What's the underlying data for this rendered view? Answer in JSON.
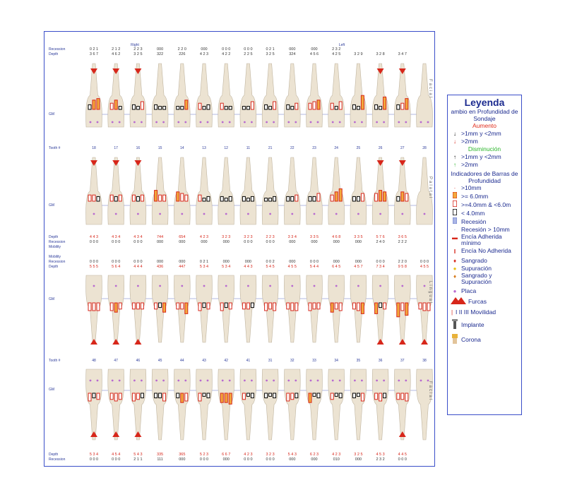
{
  "header": {
    "right_label": "Right",
    "left_label": "Left"
  },
  "upper": {
    "recession_label": "Recession",
    "depth_label": "Depth",
    "recession_values": [
      "0 2 1",
      "2 1 2",
      "2 2 3",
      "000",
      "2 2 0",
      "000",
      "0 0 0",
      "0 0 0",
      "0 2 1",
      "000",
      "000",
      "2 3 2"
    ],
    "depth_values": [
      "3 6 7",
      "4 6 2",
      "3 2 5",
      "322",
      "226",
      "4 2 3",
      "4 2 2",
      "2 2 5",
      "3 2 5",
      "324",
      "4 5 6",
      "4 2 5",
      "3 2 9",
      "3 2 8",
      "3 4 7"
    ],
    "gm_label": "GM",
    "tooth_label": "Tooth #",
    "teeth": [
      "18",
      "17",
      "16",
      "15",
      "14",
      "13",
      "12",
      "11",
      "21",
      "22",
      "23",
      "24",
      "25",
      "26",
      "27",
      "28"
    ]
  },
  "palatal": {
    "gm_label": "GM",
    "depth_label": "Depth",
    "recession_label": "Recession",
    "mobility_label": "Mobility",
    "depth_values": [
      "4 4 3",
      "4 3 4",
      "4 3 4",
      "744",
      "654",
      "4 2 3",
      "3 2 3",
      "3 2 3",
      "2 2 3",
      "3 3 4",
      "3 3 5",
      "4 6 8",
      "3 3 5",
      "5 7 6",
      "3 6 5"
    ],
    "recession_values": [
      "0 0 0",
      "0 0 0",
      "0 0 0",
      "000",
      "000",
      "000",
      "000",
      "0 0 0",
      "0 0 0",
      "000",
      "000",
      "000",
      "000",
      "2 4 0",
      "2 2 2"
    ]
  },
  "lower": {
    "mobility_label": "Mobility",
    "recession_label": "Recession",
    "depth_label": "Depth",
    "recession_values": [
      "0 0 0",
      "0 0 0",
      "0 0 0",
      "000",
      "000",
      "0 2 1",
      "000",
      "000",
      "0 0 2",
      "000",
      "0 0 0",
      "000",
      "000",
      "0 0 0",
      "2 2 0",
      "0 0 0"
    ],
    "depth_values": [
      "5 5 5",
      "5 6 4",
      "4 4 4",
      "436",
      "447",
      "5 3 4",
      "5 3 4",
      "4 4 3",
      "5 4 5",
      "4 5 5",
      "5 4 4",
      "6 4 5",
      "4 5 7",
      "7 3 4",
      "9 5 8",
      "4 5 5"
    ],
    "gm_label": "GM",
    "tooth_label": "Tooth #",
    "teeth": [
      "48",
      "47",
      "46",
      "45",
      "44",
      "43",
      "42",
      "41",
      "31",
      "32",
      "33",
      "34",
      "35",
      "36",
      "37",
      "38"
    ],
    "footer_depth_label": "Depth",
    "footer_recession_label": "Recession",
    "footer_depth": [
      "5 3 4",
      "4 5 4",
      "5 4 3",
      "335",
      "365",
      "5 2 3",
      "6 6 7",
      "4 2 3",
      "3 2 3",
      "5 4 3",
      "6 2 3",
      "4 2 3",
      "3 2 5",
      "4 5 3",
      "4 4 5"
    ],
    "footer_recession": [
      "0 0 0",
      "0 0 0",
      "2 1 1",
      "111",
      "000",
      "0 0 0",
      "000",
      "0 0 0",
      "0 0 0",
      "000",
      "000",
      "010",
      "000",
      "2 3 2",
      "0 0 0"
    ]
  },
  "side_labels": {
    "facial_top": "Facial",
    "palatal": "Palatal",
    "lingual": "Lingual",
    "facial_bottom": "Facial"
  },
  "legend": {
    "title": "Leyenda",
    "change_heading": "ambio en Profundidad de Sondaje",
    "increase": "Aumento",
    "inc1": ">1mm y <2mm",
    "inc2": ">2mm",
    "decrease": "Disminución",
    "dec1": ">1mm y <2mm",
    "dec2": ">2mm",
    "bars_heading": "Indicadores de Barras de Profundidad",
    "b1": ">10mm",
    "b2": ">= 6.0mm",
    "b3": ">=4.0mm & <6.0m",
    "b4": "< 4.0mm",
    "b5": "Recesión",
    "b6": "Recesión > 10mm",
    "b7": "Encía Adherida mínimo",
    "b8": "Encía No Adherida",
    "b9": "Sangrado",
    "b10": "Supuración",
    "b11": "Sangrado y Supuración",
    "b12": "Placa",
    "b13": "Furcas",
    "b14": "I II III Movilidad",
    "b15": "Implante",
    "b16": "Corona"
  },
  "colors": {
    "frame": "#3a4ec9",
    "red": "#d7261a",
    "orange": "#f2a93b",
    "tooth": "#ece3d2",
    "blue_text": "#1b2a8f"
  }
}
